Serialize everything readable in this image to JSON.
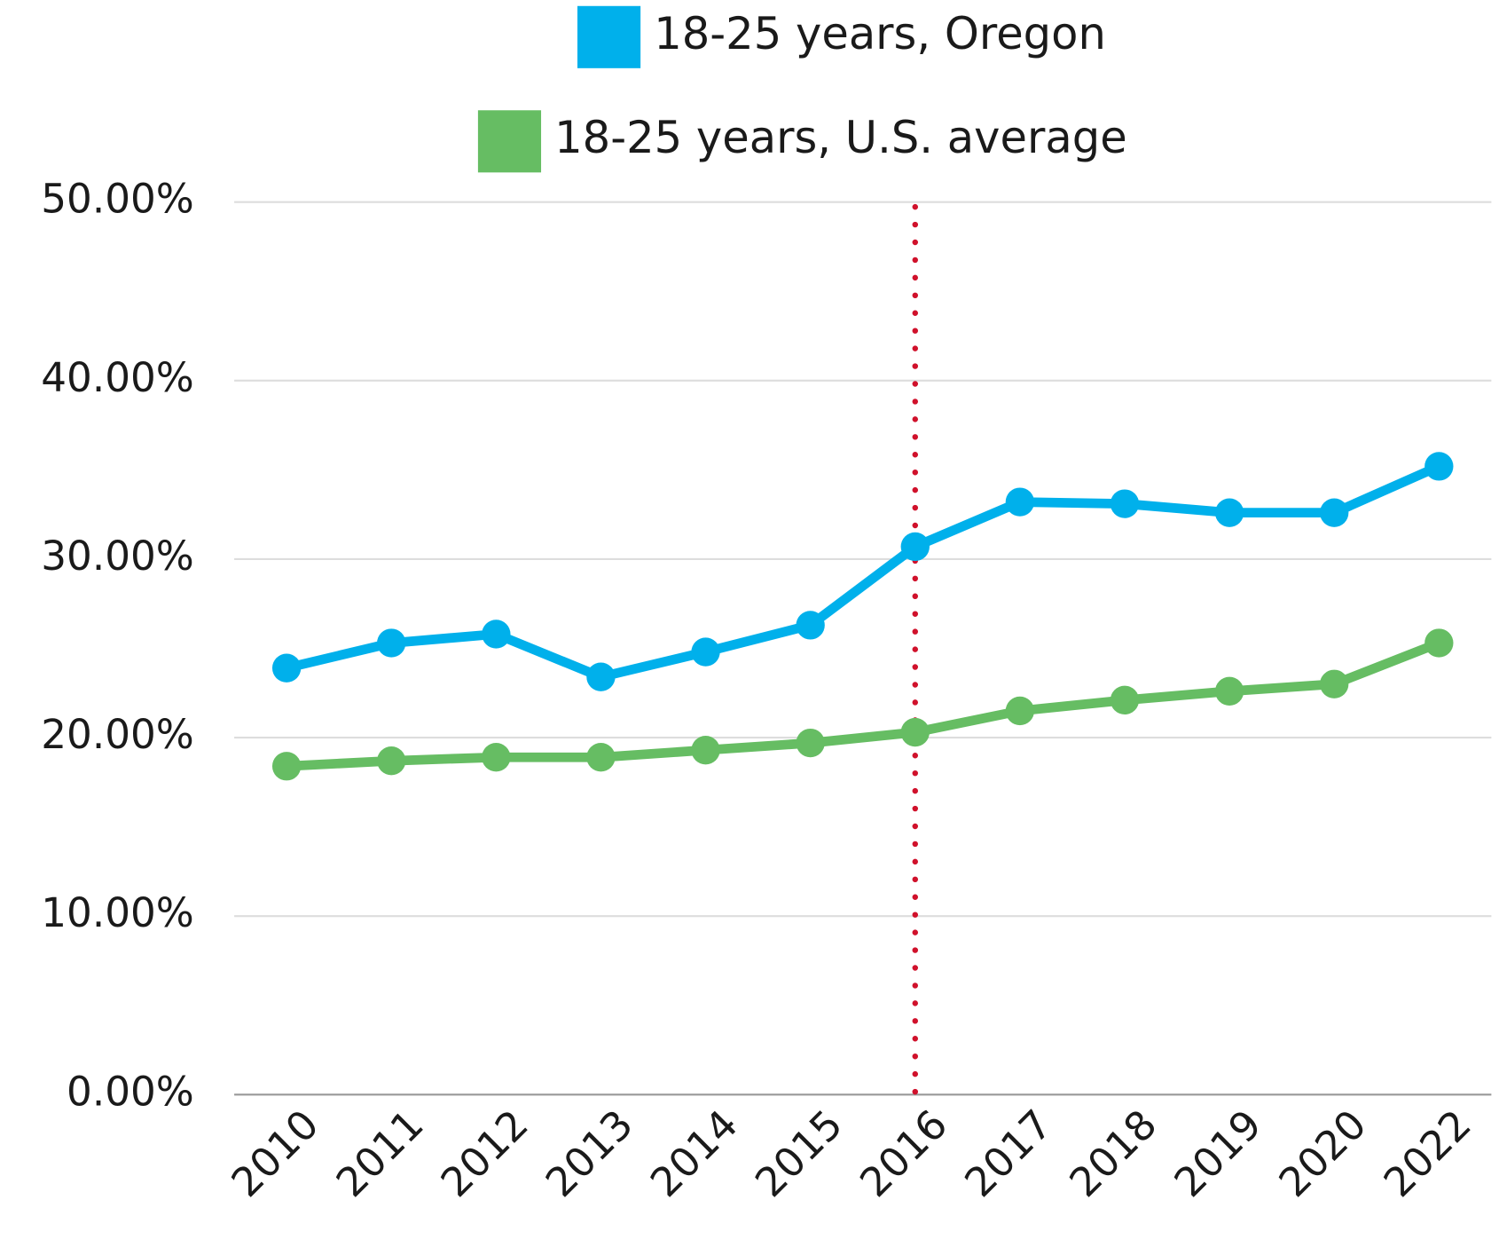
{
  "chart_data": {
    "type": "line",
    "categories": [
      "2010",
      "2011",
      "2012",
      "2013",
      "2014",
      "2015",
      "2016",
      "2017",
      "2018",
      "2019",
      "2020",
      "2022"
    ],
    "series": [
      {
        "name": "18-25 years, Oregon",
        "color": "#00b0eb",
        "values": [
          23.9,
          25.3,
          25.8,
          23.4,
          24.8,
          26.3,
          30.7,
          33.2,
          33.1,
          32.6,
          32.6,
          35.2
        ]
      },
      {
        "name": "18-25 years, U.S. average",
        "color": "#66bd63",
        "values": [
          18.4,
          18.7,
          18.9,
          18.9,
          19.3,
          19.7,
          20.3,
          21.5,
          22.1,
          22.6,
          23.0,
          25.3
        ]
      }
    ],
    "ylim": [
      0,
      50
    ],
    "yticks": [
      {
        "value": 0,
        "label": "0.00%"
      },
      {
        "value": 10,
        "label": "10.00%"
      },
      {
        "value": 20,
        "label": "20.00%"
      },
      {
        "value": 30,
        "label": "30.00%"
      },
      {
        "value": 40,
        "label": "40.00%"
      },
      {
        "value": 50,
        "label": "50.00%"
      }
    ],
    "grid": true,
    "legend": "top",
    "vertical_line": {
      "category": "2016",
      "color": "#d0112b",
      "style": "dotted"
    }
  }
}
